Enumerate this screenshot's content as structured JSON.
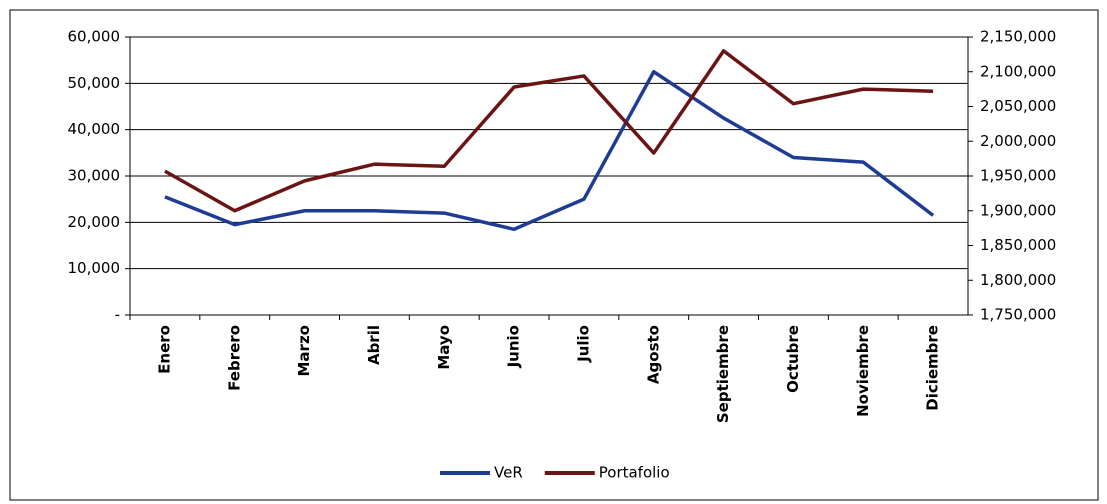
{
  "chart_data": {
    "type": "line",
    "categories": [
      "Enero",
      "Febrero",
      "Marzo",
      "Abril",
      "Mayo",
      "Junio",
      "Julio",
      "Agosto",
      "Septiembre",
      "Octubre",
      "Noviembre",
      "Diciembre"
    ],
    "series": [
      {
        "name": "VeR",
        "color": "#1f3c94",
        "values": [
          25500,
          19500,
          22500,
          22500,
          22000,
          18500,
          25000,
          52500,
          42500,
          34000,
          33000,
          21500
        ]
      },
      {
        "name": "Portafolio",
        "color": "#6b1414",
        "axis": "y2",
        "values": [
          1957000,
          1900000,
          1943000,
          1967000,
          1964000,
          2078000,
          2094000,
          1983000,
          2130000,
          2054000,
          2075000,
          2072000
        ]
      }
    ],
    "ylim": [
      0,
      60000
    ],
    "yticks": [
      {
        "value": 0,
        "label": "-"
      },
      {
        "value": 10000,
        "label": "10,000"
      },
      {
        "value": 20000,
        "label": "20,000"
      },
      {
        "value": 30000,
        "label": "30,000"
      },
      {
        "value": 40000,
        "label": "40,000"
      },
      {
        "value": 50000,
        "label": "50,000"
      },
      {
        "value": 60000,
        "label": "60,000"
      }
    ],
    "y2lim": [
      1750000,
      2150000
    ],
    "y2ticks": [
      {
        "value": 1750000,
        "label": "1,750,000"
      },
      {
        "value": 1800000,
        "label": "1,800,000"
      },
      {
        "value": 1850000,
        "label": "1,850,000"
      },
      {
        "value": 1900000,
        "label": "1,900,000"
      },
      {
        "value": 1950000,
        "label": "1,950,000"
      },
      {
        "value": 2000000,
        "label": "2,000,000"
      },
      {
        "value": 2050000,
        "label": "2,050,000"
      },
      {
        "value": 2100000,
        "label": "2,100,000"
      },
      {
        "value": 2150000,
        "label": "2,150,000"
      }
    ],
    "grid": true,
    "legend": "bottom"
  }
}
